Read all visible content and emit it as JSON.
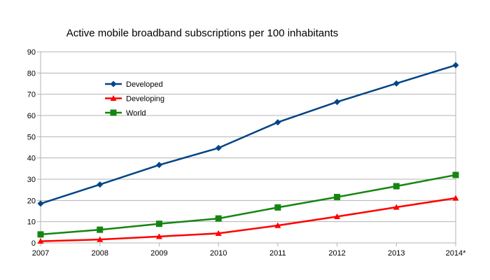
{
  "chart_data": {
    "type": "line",
    "title": "Active mobile broadband subscriptions per 100 inhabitants",
    "categories": [
      "2007",
      "2008",
      "2009",
      "2010",
      "2011",
      "2012",
      "2013",
      "2014*"
    ],
    "ylim": [
      0,
      90
    ],
    "yticks": [
      0,
      10,
      20,
      30,
      40,
      50,
      60,
      70,
      80,
      90
    ],
    "grid": true,
    "legend_position": "top-left",
    "series": [
      {
        "name": "Developed",
        "color": "#004586",
        "marker": "diamond",
        "values": [
          18.5,
          27.5,
          36.7,
          44.7,
          56.8,
          66.4,
          75.1,
          83.7
        ]
      },
      {
        "name": "Developing",
        "color": "#ff0000",
        "marker": "triangle",
        "values": [
          0.8,
          1.6,
          3.0,
          4.5,
          8.2,
          12.4,
          16.8,
          21.1
        ]
      },
      {
        "name": "World",
        "color": "#158511",
        "marker": "square",
        "values": [
          4.0,
          6.2,
          9.0,
          11.5,
          16.7,
          21.6,
          26.7,
          32.0
        ]
      }
    ]
  }
}
